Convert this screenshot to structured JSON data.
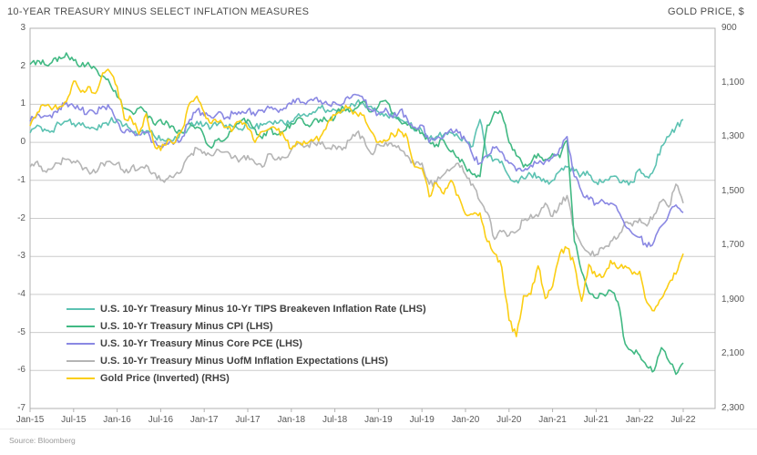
{
  "header": {
    "title": "10-YEAR TREASURY MINUS SELECT INFLATION MEASURES",
    "right_axis_title": "GOLD PRICE, $"
  },
  "footer": {
    "source": "Source: Bloomberg"
  },
  "chart_data": {
    "type": "line",
    "title": "10-YEAR TREASURY MINUS SELECT INFLATION MEASURES",
    "grid": true,
    "legend_position": "inside-bottom-left",
    "x_start": "Jan-15",
    "x_end": "Jul-22",
    "x_tick_labels": [
      "Jan-15",
      "Jul-15",
      "Jan-16",
      "Jul-16",
      "Jan-17",
      "Jul-17",
      "Jan-18",
      "Jul-18",
      "Jan-19",
      "Jul-19",
      "Jan-20",
      "Jul-20",
      "Jan-21",
      "Jul-21",
      "Jan-22",
      "Jul-22"
    ],
    "left_axis": {
      "title": "",
      "max": 3,
      "min": -7,
      "ticks": [
        "3",
        "2",
        "1",
        "0",
        "-1",
        "-2",
        "-3",
        "-4",
        "-5",
        "-6",
        "-7"
      ]
    },
    "right_axis": {
      "title": "GOLD PRICE, $",
      "min": 900,
      "max": 2300,
      "inverted": true,
      "ticks": [
        "900",
        "1,100",
        "1,300",
        "1,500",
        "1,700",
        "1,900",
        "2,100",
        "2,300"
      ]
    },
    "sampling": "monthly Jan-2015 through Jul-2022",
    "series": [
      {
        "name": "U.S. 10-Yr Treasury Minus 10-Yr TIPS Breakeven Inflation Rate (LHS)",
        "axis": "left",
        "color": "#5cc2b2",
        "values": [
          0.25,
          0.45,
          0.35,
          0.3,
          0.5,
          0.55,
          0.5,
          0.45,
          0.4,
          0.35,
          0.5,
          0.55,
          0.6,
          0.45,
          0.3,
          0.25,
          0.3,
          0.2,
          0.05,
          0.1,
          0.15,
          0.25,
          0.4,
          0.55,
          0.45,
          0.4,
          0.5,
          0.45,
          0.4,
          0.35,
          0.5,
          0.4,
          0.45,
          0.55,
          0.5,
          0.5,
          0.55,
          0.75,
          0.7,
          0.8,
          0.9,
          0.85,
          0.85,
          0.8,
          0.9,
          1.05,
          1.0,
          0.95,
          0.8,
          0.75,
          0.65,
          0.6,
          0.55,
          0.3,
          0.3,
          0.1,
          0.15,
          0.2,
          0.25,
          0.15,
          0.05,
          -0.1,
          0.6,
          -0.4,
          -0.45,
          -0.5,
          -0.9,
          -1.0,
          -0.95,
          -0.85,
          -0.9,
          -1.05,
          -1.0,
          -0.75,
          -0.65,
          -0.75,
          -0.85,
          -0.85,
          -1.05,
          -1.05,
          -0.9,
          -0.95,
          -1.05,
          -1.05,
          -0.7,
          -0.9,
          -0.7,
          -0.1,
          0.15,
          0.4,
          0.6
        ]
      },
      {
        "name": "U.S. 10-Yr Treasury Minus CPI (LHS)",
        "axis": "left",
        "color": "#41b983",
        "values": [
          2.05,
          2.15,
          2.05,
          2.1,
          2.25,
          2.35,
          2.15,
          2.0,
          2.1,
          1.95,
          1.75,
          1.55,
          1.2,
          0.9,
          0.8,
          0.9,
          0.8,
          0.5,
          0.6,
          0.5,
          0.3,
          0.25,
          0.5,
          0.4,
          0.15,
          -0.15,
          0.1,
          0.1,
          0.35,
          0.55,
          0.6,
          0.35,
          0.1,
          0.35,
          0.2,
          0.3,
          0.5,
          0.65,
          0.45,
          0.55,
          0.6,
          0.55,
          0.65,
          0.95,
          0.8,
          0.9,
          1.1,
          0.8,
          0.95,
          1.1,
          0.75,
          0.55,
          0.45,
          0.35,
          0.25,
          0.0,
          -0.05,
          0.05,
          -0.25,
          -0.4,
          -0.65,
          -0.85,
          -0.9,
          0.45,
          0.8,
          0.75,
          0.0,
          -0.35,
          -0.65,
          -0.55,
          -0.3,
          -0.45,
          -0.3,
          -0.4,
          0.05,
          -2.6,
          -3.4,
          -3.95,
          -4.1,
          -4.0,
          -3.9,
          -4.2,
          -5.3,
          -5.5,
          -5.6,
          -5.9,
          -6.0,
          -5.4,
          -5.75,
          -6.1,
          -5.8
        ]
      },
      {
        "name": "U.S. 10-Yr Treasury Minus Core PCE (LHS)",
        "axis": "left",
        "color": "#8a88e3",
        "values": [
          0.55,
          0.75,
          0.7,
          0.65,
          0.9,
          1.05,
          0.95,
          0.85,
          0.8,
          0.75,
          0.95,
          0.9,
          0.55,
          0.25,
          0.3,
          0.2,
          0.25,
          0.0,
          -0.1,
          -0.05,
          0.0,
          0.15,
          0.6,
          0.85,
          0.7,
          0.65,
          0.8,
          0.65,
          0.75,
          0.75,
          0.85,
          0.7,
          0.85,
          0.9,
          0.85,
          0.9,
          1.0,
          1.15,
          1.0,
          1.1,
          1.1,
          1.0,
          1.05,
          1.0,
          1.15,
          1.25,
          1.1,
          0.85,
          0.75,
          0.9,
          0.65,
          0.85,
          0.6,
          0.4,
          0.45,
          0.0,
          0.1,
          0.15,
          0.35,
          0.25,
          0.05,
          -0.35,
          -0.55,
          -0.35,
          -0.15,
          -0.25,
          -0.55,
          -0.75,
          -0.75,
          -0.6,
          -0.55,
          -0.5,
          -0.4,
          -0.15,
          0.15,
          -0.9,
          -1.3,
          -1.5,
          -1.6,
          -1.55,
          -1.6,
          -1.8,
          -2.2,
          -2.4,
          -2.5,
          -2.75,
          -2.6,
          -2.2,
          -1.9,
          -1.65,
          -1.85
        ]
      },
      {
        "name": "U.S. 10-Yr Treasury Minus UofM Inflation Expectations (LHS)",
        "axis": "left",
        "color": "#b5b5b5",
        "values": [
          -0.65,
          -0.5,
          -0.75,
          -0.7,
          -0.55,
          -0.45,
          -0.5,
          -0.6,
          -0.75,
          -0.8,
          -0.55,
          -0.5,
          -0.55,
          -0.8,
          -0.65,
          -0.7,
          -0.6,
          -0.8,
          -1.0,
          -0.95,
          -0.85,
          -0.7,
          -0.35,
          -0.15,
          -0.25,
          -0.35,
          -0.2,
          -0.25,
          -0.4,
          -0.45,
          -0.35,
          -0.55,
          -0.65,
          -0.3,
          -0.45,
          -0.4,
          -0.2,
          0.0,
          -0.1,
          0.0,
          -0.05,
          -0.15,
          -0.1,
          -0.2,
          0.05,
          0.25,
          0.1,
          -0.3,
          -0.05,
          0.0,
          -0.1,
          -0.2,
          -0.35,
          -0.6,
          -0.55,
          -1.1,
          -1.05,
          -0.85,
          -0.7,
          -0.55,
          -0.85,
          -1.1,
          -1.55,
          -1.85,
          -2.55,
          -2.35,
          -2.45,
          -2.35,
          -2.05,
          -1.9,
          -1.95,
          -1.6,
          -1.95,
          -1.6,
          -1.4,
          -2.3,
          -2.7,
          -2.9,
          -2.95,
          -2.8,
          -2.6,
          -2.5,
          -2.1,
          -2.2,
          -2.0,
          -2.2,
          -1.9,
          -1.55,
          -1.7,
          -1.1,
          -1.6
        ]
      },
      {
        "name": "Gold Price (Inverted) (RHS)",
        "axis": "right",
        "color": "#fbce14",
        "values": [
          1260,
          1210,
          1185,
          1200,
          1190,
          1170,
          1095,
          1135,
          1115,
          1140,
          1065,
          1060,
          1115,
          1235,
          1235,
          1290,
          1215,
          1320,
          1350,
          1310,
          1320,
          1270,
          1175,
          1150,
          1210,
          1250,
          1245,
          1265,
          1270,
          1240,
          1270,
          1320,
          1280,
          1270,
          1275,
          1300,
          1345,
          1320,
          1325,
          1315,
          1300,
          1250,
          1220,
          1200,
          1190,
          1215,
          1220,
          1280,
          1320,
          1315,
          1290,
          1280,
          1305,
          1410,
          1415,
          1520,
          1470,
          1510,
          1460,
          1515,
          1585,
          1585,
          1580,
          1685,
          1730,
          1780,
          1975,
          2035,
          1885,
          1880,
          1775,
          1895,
          1850,
          1730,
          1710,
          1770,
          1905,
          1770,
          1815,
          1815,
          1755,
          1785,
          1775,
          1805,
          1795,
          1910,
          1940,
          1895,
          1840,
          1805,
          1730
        ]
      }
    ],
    "colors": {
      "grid": "#cccccc",
      "border": "#b0b0b0",
      "axis_text": "#595959",
      "title_text": "#4d4d4d"
    }
  }
}
